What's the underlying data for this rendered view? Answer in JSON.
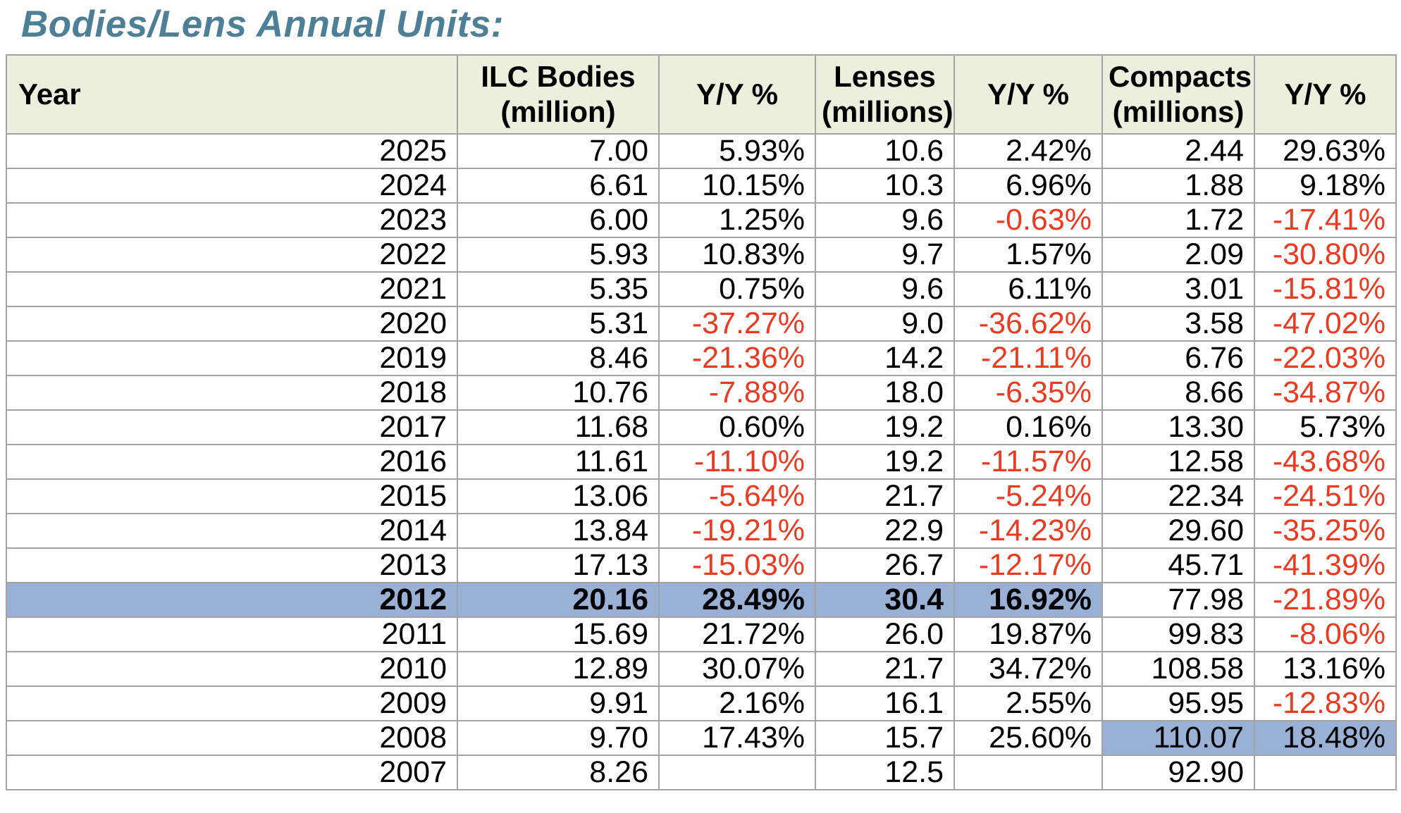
{
  "title": "Bodies/Lens Annual Units:",
  "colors": {
    "title_color": "#4d7f97",
    "header_bg": "#ecefdd",
    "highlight_bg": "#9ab0d5",
    "negative_text": "#e83b22",
    "grid_line": "#a3a3a3"
  },
  "chart_data": {
    "type": "table",
    "title": "Bodies/Lens Annual Units:",
    "columns": [
      "Year",
      "ILC Bodies\n(million)",
      "Y/Y %",
      "Lenses\n(millions)",
      "Y/Y %",
      "Compacts\n(millions)",
      "Y/Y %"
    ],
    "rows": [
      {
        "cells": [
          "2025",
          "7.00",
          "5.93%",
          "10.6",
          "2.42%",
          "2.44",
          "29.63%"
        ]
      },
      {
        "cells": [
          "2024",
          "6.61",
          "10.15%",
          "10.3",
          "6.96%",
          "1.88",
          "9.18%"
        ]
      },
      {
        "cells": [
          "2023",
          "6.00",
          "1.25%",
          "9.6",
          "-0.63%",
          "1.72",
          "-17.41%"
        ]
      },
      {
        "cells": [
          "2022",
          "5.93",
          "10.83%",
          "9.7",
          "1.57%",
          "2.09",
          "-30.80%"
        ]
      },
      {
        "cells": [
          "2021",
          "5.35",
          "0.75%",
          "9.6",
          "6.11%",
          "3.01",
          "-15.81%"
        ]
      },
      {
        "cells": [
          "2020",
          "5.31",
          "-37.27%",
          "9.0",
          "-36.62%",
          "3.58",
          "-47.02%"
        ]
      },
      {
        "cells": [
          "2019",
          "8.46",
          "-21.36%",
          "14.2",
          "-21.11%",
          "6.76",
          "-22.03%"
        ]
      },
      {
        "cells": [
          "2018",
          "10.76",
          "-7.88%",
          "18.0",
          "-6.35%",
          "8.66",
          "-34.87%"
        ]
      },
      {
        "cells": [
          "2017",
          "11.68",
          "0.60%",
          "19.2",
          "0.16%",
          "13.30",
          "5.73%"
        ]
      },
      {
        "cells": [
          "2016",
          "11.61",
          "-11.10%",
          "19.2",
          "-11.57%",
          "12.58",
          "-43.68%"
        ]
      },
      {
        "cells": [
          "2015",
          "13.06",
          "-5.64%",
          "21.7",
          "-5.24%",
          "22.34",
          "-24.51%"
        ]
      },
      {
        "cells": [
          "2014",
          "13.84",
          "-19.21%",
          "22.9",
          "-14.23%",
          "29.60",
          "-35.25%"
        ]
      },
      {
        "cells": [
          "2013",
          "17.13",
          "-15.03%",
          "26.7",
          "-12.17%",
          "45.71",
          "-41.39%"
        ]
      },
      {
        "cells": [
          "2012",
          "20.16",
          "28.49%",
          "30.4",
          "16.92%",
          "77.98",
          "-21.89%"
        ],
        "highlight_cols": [
          0,
          1,
          2,
          3,
          4
        ],
        "bold_cols": [
          0,
          1,
          2,
          3,
          4
        ]
      },
      {
        "cells": [
          "2011",
          "15.69",
          "21.72%",
          "26.0",
          "19.87%",
          "99.83",
          "-8.06%"
        ]
      },
      {
        "cells": [
          "2010",
          "12.89",
          "30.07%",
          "21.7",
          "34.72%",
          "108.58",
          "13.16%"
        ]
      },
      {
        "cells": [
          "2009",
          "9.91",
          "2.16%",
          "16.1",
          "2.55%",
          "95.95",
          "-12.83%"
        ]
      },
      {
        "cells": [
          "2008",
          "9.70",
          "17.43%",
          "15.7",
          "25.60%",
          "110.07",
          "18.48%"
        ],
        "highlight_cols": [
          5,
          6
        ]
      },
      {
        "cells": [
          "2007",
          "8.26",
          "",
          "12.5",
          "",
          "92.90",
          ""
        ]
      }
    ]
  }
}
